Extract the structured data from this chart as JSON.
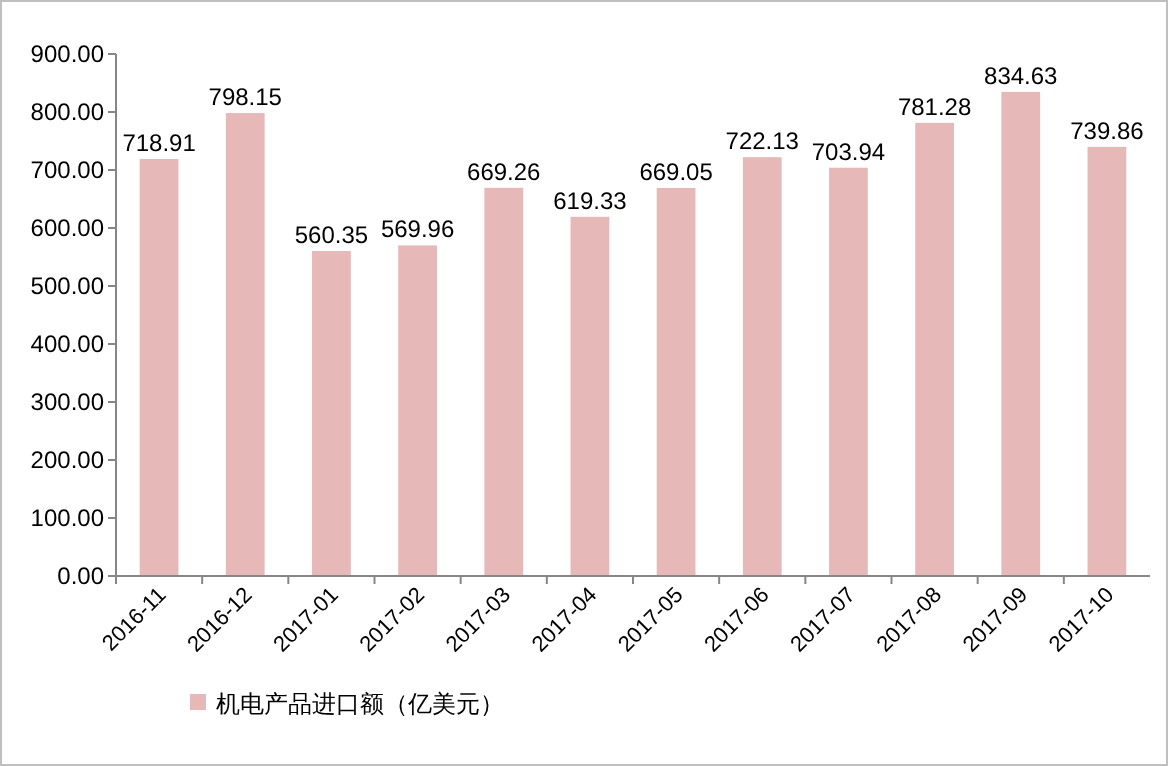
{
  "chart_data": {
    "type": "bar",
    "categories": [
      "2016-11",
      "2016-12",
      "2017-01",
      "2017-02",
      "2017-03",
      "2017-04",
      "2017-05",
      "2017-06",
      "2017-07",
      "2017-08",
      "2017-09",
      "2017-10"
    ],
    "series": [
      {
        "name": "机电产品进口额（亿美元）",
        "color": "#e6b9b8",
        "values": [
          718.91,
          798.15,
          560.35,
          569.96,
          669.26,
          619.33,
          669.05,
          722.13,
          703.94,
          781.28,
          834.63,
          739.86
        ]
      }
    ],
    "ylim": [
      0,
      900
    ],
    "yticks": [
      {
        "value": 0,
        "label": "0.00"
      },
      {
        "value": 100,
        "label": "100.00"
      },
      {
        "value": 200,
        "label": "200.00"
      },
      {
        "value": 300,
        "label": "300.00"
      },
      {
        "value": 400,
        "label": "400.00"
      },
      {
        "value": 500,
        "label": "500.00"
      },
      {
        "value": 600,
        "label": "600.00"
      },
      {
        "value": 700,
        "label": "700.00"
      },
      {
        "value": 800,
        "label": "800.00"
      },
      {
        "value": 900,
        "label": "900.00"
      }
    ],
    "data_labels": true,
    "grid": false,
    "legend": "bottom left"
  }
}
